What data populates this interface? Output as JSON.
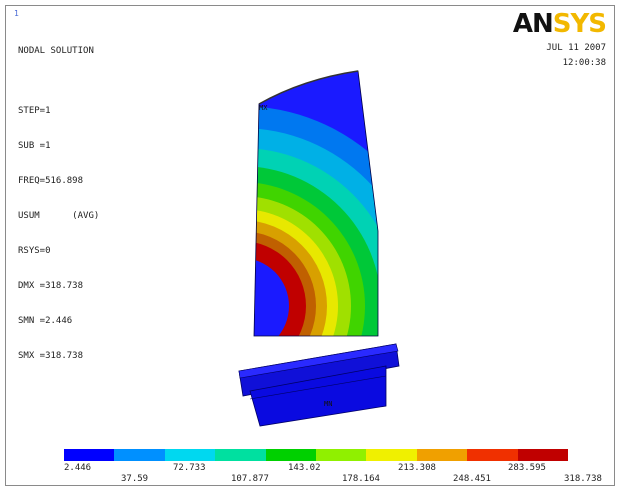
{
  "window": {
    "number": "1"
  },
  "logo": {
    "part1": "AN",
    "part2": "SYS"
  },
  "info": {
    "lines": [
      "NODAL SOLUTION",
      "",
      "STEP=1",
      "SUB =1",
      "FREQ=516.898",
      "USUM      (AVG)",
      "RSYS=0",
      "DMX =318.738",
      "SMN =2.446",
      "SMX =318.738"
    ]
  },
  "timestamp": {
    "date": "JUL 11 2007",
    "time": "12:00:38"
  },
  "plot": {
    "mx_marker": "MX",
    "mn_marker": "MN"
  },
  "legend": {
    "colors": [
      "#0000ff",
      "#0090ff",
      "#00d8f0",
      "#00e0a0",
      "#00d000",
      "#90f000",
      "#f0f000",
      "#f0a000",
      "#f03000",
      "#c00000"
    ],
    "tick_labels_top": [
      "2.446",
      "72.733",
      "143.02",
      "213.308",
      "283.595"
    ],
    "tick_labels_bottom": [
      "37.59",
      "107.877",
      "178.164",
      "248.451",
      "318.738"
    ]
  }
}
